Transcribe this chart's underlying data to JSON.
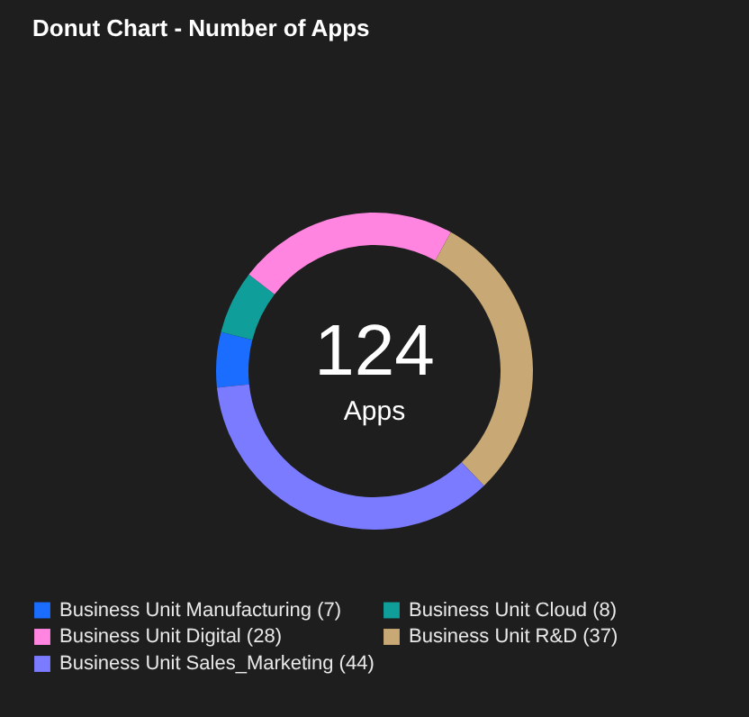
{
  "chart_data": {
    "type": "donut",
    "title": "Donut Chart - Number of Apps",
    "categories": [
      "Business Unit Manufacturing (7)",
      "Business Unit Cloud (8)",
      "Business Unit Digital (28)",
      "Business Unit R&D (37)",
      "Business Unit Sales_Marketing (44)"
    ],
    "values": [
      7,
      8,
      28,
      37,
      44
    ],
    "colors": [
      "#1a6dff",
      "#0f9e9a",
      "#ff85e0",
      "#c8a874",
      "#7b7bff"
    ],
    "legend": "bottom",
    "annotations": [
      "124",
      "Apps"
    ]
  }
}
